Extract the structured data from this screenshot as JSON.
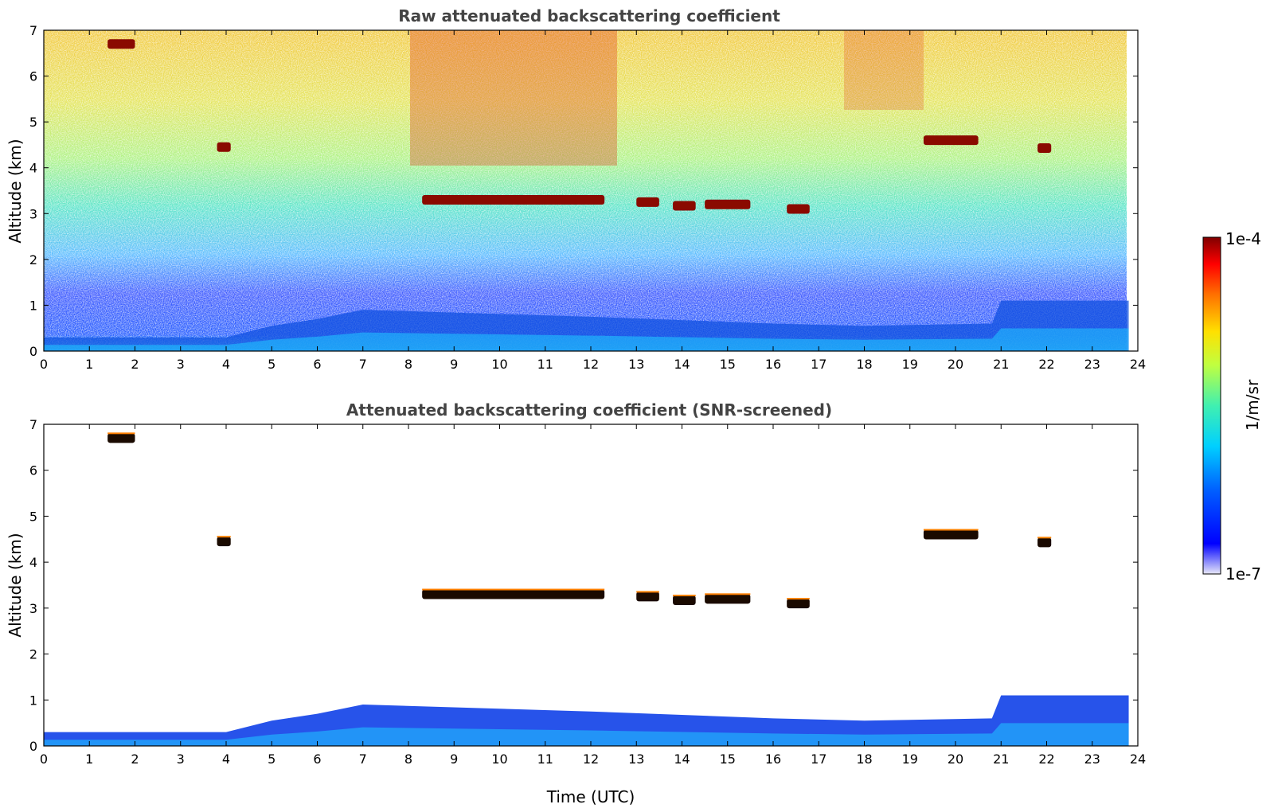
{
  "chart_data": [
    {
      "type": "heatmap",
      "title": "Raw attenuated backscattering coefficient",
      "xlabel": "",
      "ylabel": "Altitude (km)",
      "xlim": [
        0,
        24
      ],
      "ylim": [
        0,
        7
      ],
      "x_ticks": [
        "0",
        "1",
        "2",
        "3",
        "4",
        "5",
        "6",
        "7",
        "8",
        "9",
        "10",
        "11",
        "12",
        "13",
        "14",
        "15",
        "16",
        "17",
        "18",
        "19",
        "20",
        "21",
        "22",
        "23",
        "24"
      ],
      "y_ticks": [
        "0",
        "1",
        "2",
        "3",
        "4",
        "5",
        "6",
        "7"
      ],
      "data_end_hour": 23.8,
      "colorscale": "jet-log",
      "cloud_layers": [
        {
          "x0": 8.3,
          "x1": 12.3,
          "alt": 3.3
        },
        {
          "x0": 13.0,
          "x1": 13.5,
          "alt": 3.25
        },
        {
          "x0": 13.8,
          "x1": 14.3,
          "alt": 3.17
        },
        {
          "x0": 14.5,
          "x1": 15.5,
          "alt": 3.2
        },
        {
          "x0": 16.3,
          "x1": 16.8,
          "alt": 3.1
        },
        {
          "x0": 19.3,
          "x1": 20.5,
          "alt": 4.6
        },
        {
          "x0": 21.8,
          "x1": 22.1,
          "alt": 4.43
        },
        {
          "x0": 3.8,
          "x1": 4.1,
          "alt": 4.45
        },
        {
          "x0": 1.4,
          "x1": 2.0,
          "alt": 6.7
        }
      ],
      "aerosol_top_km": [
        [
          0,
          0.3
        ],
        [
          4,
          0.3
        ],
        [
          5,
          0.55
        ],
        [
          6,
          0.7
        ],
        [
          7,
          0.9
        ],
        [
          12,
          0.75
        ],
        [
          16,
          0.6
        ],
        [
          18,
          0.55
        ],
        [
          20.8,
          0.6
        ],
        [
          21,
          1.1
        ],
        [
          23.8,
          1.1
        ]
      ]
    },
    {
      "type": "heatmap",
      "title": "Attenuated backscattering coefficient (SNR-screened)",
      "xlabel": "Time (UTC)",
      "ylabel": "Altitude (km)",
      "xlim": [
        0,
        24
      ],
      "ylim": [
        0,
        7
      ],
      "x_ticks": [
        "0",
        "1",
        "2",
        "3",
        "4",
        "5",
        "6",
        "7",
        "8",
        "9",
        "10",
        "11",
        "12",
        "13",
        "14",
        "15",
        "16",
        "17",
        "18",
        "19",
        "20",
        "21",
        "22",
        "23",
        "24"
      ],
      "y_ticks": [
        "0",
        "1",
        "2",
        "3",
        "4",
        "5",
        "6",
        "7"
      ],
      "data_end_hour": 23.8,
      "colorscale": "jet-log"
    }
  ],
  "colorbar": {
    "label": "1/m/sr",
    "max_label": "1e-4",
    "min_label": "1e-7",
    "stops": [
      "#e8e8f8",
      "#0000ff",
      "#00a0ff",
      "#00e0d0",
      "#80ff80",
      "#ffff00",
      "#ff8000",
      "#ff0000",
      "#800000"
    ]
  }
}
